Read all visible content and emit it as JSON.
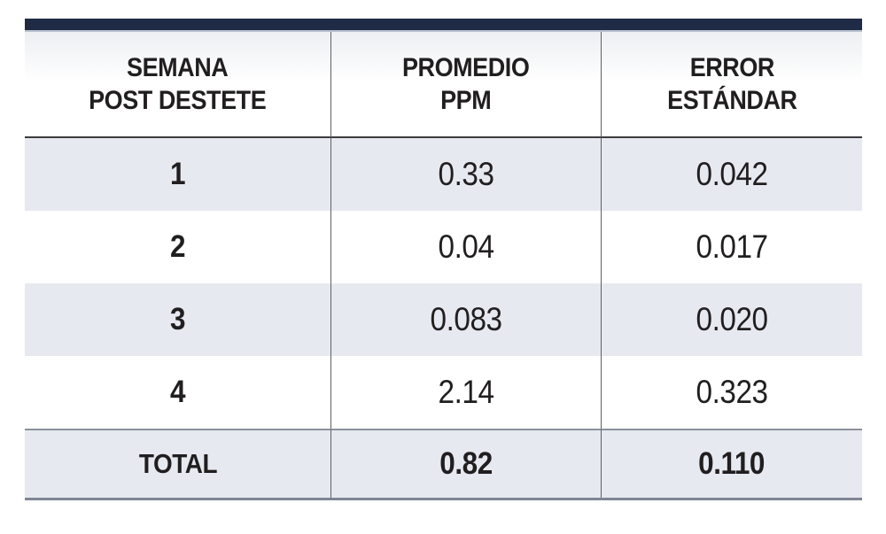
{
  "table": {
    "headers": [
      {
        "line1": "SEMANA",
        "line2": "POST DESTETE"
      },
      {
        "line1": "PROMEDIO",
        "line2": "PPM"
      },
      {
        "line1": "ERROR",
        "line2": "ESTÁNDAR"
      }
    ],
    "rows": [
      {
        "semana": "1",
        "promedio": "0.33",
        "error": "0.042"
      },
      {
        "semana": "2",
        "promedio": "0.04",
        "error": "0.017"
      },
      {
        "semana": "3",
        "promedio": "0.083",
        "error": "0.020"
      },
      {
        "semana": "4",
        "promedio": "2.14",
        "error": "0.323"
      }
    ],
    "total": {
      "label": "TOTAL",
      "promedio": "0.82",
      "error": "0.110"
    }
  },
  "colors": {
    "accent_bar": "#1f2b45",
    "accent_bar_underline": "#b7c0cd",
    "row_stripe": "#e7e9f1",
    "header_rule": "#3b3b3d",
    "total_rule": "#8b919b",
    "bottom_rule": "#7e8692",
    "column_divider": "#5d6166",
    "text": "#211e1f"
  },
  "chart_data": {
    "type": "table",
    "columns": [
      "SEMANA POST DESTETE",
      "PROMEDIO PPM",
      "ERROR ESTÁNDAR"
    ],
    "rows": [
      [
        "1",
        "0.33",
        "0.042"
      ],
      [
        "2",
        "0.04",
        "0.017"
      ],
      [
        "3",
        "0.083",
        "0.020"
      ],
      [
        "4",
        "2.14",
        "0.323"
      ],
      [
        "TOTAL",
        "0.82",
        "0.110"
      ]
    ],
    "notes": "Striped rows (weeks 1 and 3 and TOTAL shaded light lavender); dark navy accent bar above table"
  }
}
